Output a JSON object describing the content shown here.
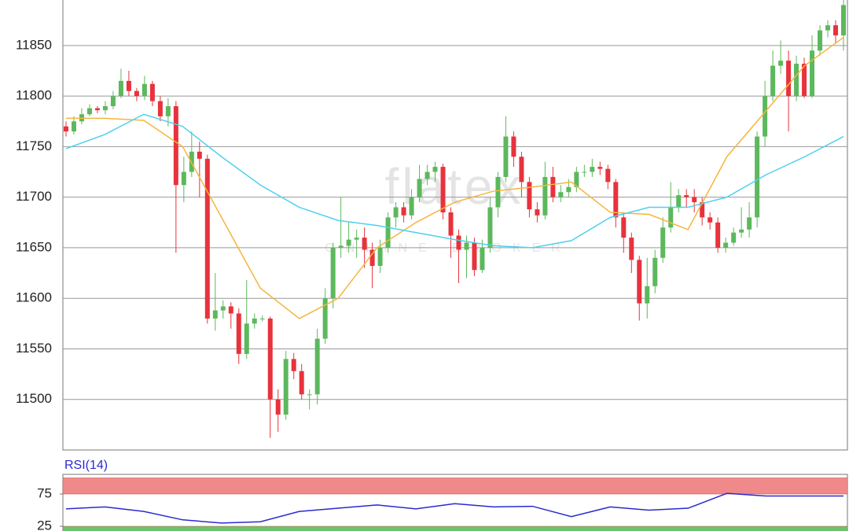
{
  "chart_data": [
    {
      "type": "candlestick",
      "watermark": "flatex",
      "watermark_subtitle": "ONLINE BROKER",
      "up_color": "#5cb85c",
      "down_color": "#e8323c",
      "ylim": [
        11450,
        11895
      ],
      "yticks": [
        11500,
        11550,
        11600,
        11650,
        11700,
        11750,
        11800,
        11850
      ],
      "grid": true,
      "open": [
        11770,
        11765,
        11775,
        11782,
        11788,
        11786,
        11790,
        11800,
        11815,
        11805,
        11800,
        11812,
        11795,
        11780,
        11790,
        11712,
        11725,
        11745,
        11738,
        11580,
        11588,
        11592,
        11585,
        11545,
        11575,
        11580,
        11580,
        11500,
        11485,
        11540,
        11528,
        11505,
        11505,
        11560,
        11600,
        11650,
        11652,
        11658,
        11660,
        11648,
        11632,
        11650,
        11680,
        11690,
        11682,
        11700,
        11718,
        11725,
        11730,
        11685,
        11662,
        11648,
        11655,
        11628,
        11650,
        11690,
        11720,
        11760,
        11740,
        11715,
        11688,
        11682,
        11720,
        11700,
        11705,
        11710,
        11725,
        11725,
        11730,
        11728,
        11715,
        11680,
        11660,
        11638,
        11595,
        11612,
        11640,
        11670,
        11690,
        11702,
        11700,
        11695,
        11680,
        11675,
        11650,
        11655,
        11665,
        11668,
        11680,
        11760,
        11800,
        11830,
        11835,
        11800,
        11832,
        11800,
        11845,
        11865,
        11870,
        11860
      ],
      "high": [
        11775,
        11780,
        11788,
        11792,
        11790,
        11795,
        11805,
        11827,
        11825,
        11808,
        11820,
        11815,
        11800,
        11798,
        11795,
        11740,
        11765,
        11755,
        11742,
        11625,
        11598,
        11596,
        11590,
        11618,
        11585,
        11583,
        11582,
        11510,
        11548,
        11546,
        11535,
        11510,
        11570,
        11610,
        11655,
        11700,
        11675,
        11668,
        11670,
        11655,
        11658,
        11685,
        11695,
        11695,
        11708,
        11732,
        11732,
        11735,
        11733,
        11690,
        11668,
        11662,
        11660,
        11658,
        11700,
        11725,
        11780,
        11765,
        11745,
        11720,
        11695,
        11735,
        11730,
        11712,
        11718,
        11730,
        11732,
        11738,
        11735,
        11732,
        11718,
        11685,
        11665,
        11642,
        11640,
        11648,
        11680,
        11715,
        11708,
        11708,
        11708,
        11700,
        11685,
        11680,
        11660,
        11670,
        11690,
        11695,
        11765,
        11815,
        11845,
        11855,
        11845,
        11840,
        11838,
        11860,
        11870,
        11875,
        11875,
        11895
      ],
      "low": [
        11760,
        11762,
        11772,
        11780,
        11783,
        11782,
        11787,
        11798,
        11800,
        11795,
        11796,
        11790,
        11775,
        11770,
        11645,
        11695,
        11720,
        11700,
        11575,
        11568,
        11580,
        11570,
        11535,
        11540,
        11570,
        11577,
        11462,
        11468,
        11480,
        11520,
        11500,
        11490,
        11495,
        11555,
        11590,
        11640,
        11645,
        11640,
        11630,
        11610,
        11625,
        11645,
        11670,
        11675,
        11678,
        11695,
        11712,
        11715,
        11678,
        11640,
        11615,
        11620,
        11622,
        11625,
        11645,
        11680,
        11715,
        11730,
        11700,
        11680,
        11675,
        11678,
        11695,
        11695,
        11700,
        11705,
        11720,
        11720,
        11722,
        11708,
        11670,
        11645,
        11625,
        11578,
        11580,
        11605,
        11635,
        11665,
        11685,
        11690,
        11685,
        11672,
        11668,
        11645,
        11645,
        11652,
        11660,
        11660,
        11670,
        11750,
        11795,
        11822,
        11765,
        11795,
        11798,
        11798,
        11840,
        11858,
        11852,
        11845
      ],
      "close": [
        11765,
        11775,
        11782,
        11788,
        11786,
        11790,
        11800,
        11815,
        11805,
        11800,
        11812,
        11795,
        11780,
        11790,
        11712,
        11725,
        11745,
        11738,
        11580,
        11588,
        11592,
        11585,
        11545,
        11575,
        11580,
        11580,
        11500,
        11485,
        11540,
        11528,
        11505,
        11505,
        11560,
        11600,
        11650,
        11652,
        11658,
        11660,
        11648,
        11632,
        11650,
        11680,
        11690,
        11682,
        11700,
        11718,
        11725,
        11730,
        11685,
        11662,
        11648,
        11655,
        11628,
        11650,
        11690,
        11720,
        11760,
        11740,
        11715,
        11688,
        11682,
        11720,
        11700,
        11705,
        11710,
        11725,
        11725,
        11730,
        11728,
        11715,
        11680,
        11660,
        11638,
        11595,
        11612,
        11640,
        11670,
        11690,
        11702,
        11700,
        11695,
        11680,
        11675,
        11650,
        11655,
        11665,
        11668,
        11680,
        11760,
        11800,
        11830,
        11835,
        11800,
        11832,
        11800,
        11845,
        11865,
        11870,
        11860,
        11890
      ],
      "series": [
        {
          "color": "#f5b53f",
          "values": [
            11778,
            11778,
            11776,
            11750,
            11680,
            11610,
            11580,
            11600,
            11650,
            11675,
            11695,
            11706,
            11710,
            11715,
            11685,
            11683,
            11668,
            11740,
            11785,
            11830,
            11858
          ]
        },
        {
          "color": "#4fd0f0",
          "values": [
            11748,
            11762,
            11782,
            11770,
            11740,
            11712,
            11690,
            11677,
            11672,
            11665,
            11658,
            11652,
            11650,
            11657,
            11680,
            11690,
            11690,
            11700,
            11722,
            11740,
            11760
          ]
        }
      ]
    },
    {
      "type": "line",
      "title": "RSI(14)",
      "ylim": [
        0,
        100
      ],
      "yticks": [
        25,
        75
      ],
      "bands": [
        {
          "range": [
            75,
            100
          ],
          "color": "#f08a8a"
        },
        {
          "range": [
            0,
            25
          ],
          "color": "#6cc46c"
        }
      ],
      "series": [
        {
          "color": "#2a2ad0",
          "values": [
            52,
            55,
            48,
            35,
            30,
            32,
            48,
            53,
            58,
            52,
            60,
            55,
            56,
            40,
            55,
            50,
            53,
            76,
            72,
            72,
            72
          ]
        }
      ]
    }
  ]
}
